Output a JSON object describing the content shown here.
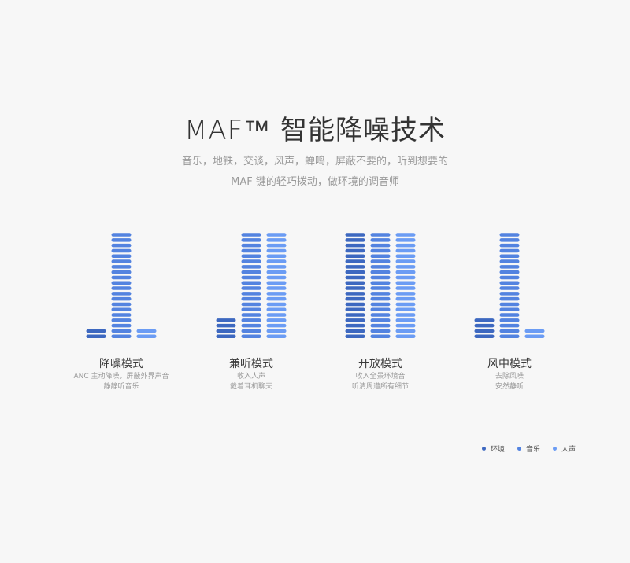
{
  "header": {
    "title": "MAF™ 智能降噪技术",
    "subtitle_line1": "音乐，地铁，交谈，风声，蝉鸣，屏蔽不要的，听到想要的",
    "subtitle_line2": "MAF 键的轻巧拨动，做环境的调音师"
  },
  "modes": [
    {
      "name": "降噪模式",
      "desc1": "ANC 主动降噪，屏蔽外界声音",
      "desc2": "静静听音乐"
    },
    {
      "name": "兼听模式",
      "desc1": "收入人声",
      "desc2": "戴着耳机聊天"
    },
    {
      "name": "开放模式",
      "desc1": "收入全景环境音",
      "desc2": "听清周遭所有细节"
    },
    {
      "name": "风中模式",
      "desc1": "去除风噪",
      "desc2": "安然静听"
    }
  ],
  "legend": [
    {
      "label": "环境",
      "color": "#3d68c0"
    },
    {
      "label": "音乐",
      "color": "#5383e0"
    },
    {
      "label": "人声",
      "color": "#6b9cf4"
    }
  ],
  "chart_data": {
    "type": "bar",
    "categories": [
      "降噪模式",
      "兼听模式",
      "开放模式",
      "风中模式"
    ],
    "series": [
      {
        "name": "环境",
        "values": [
          2,
          4,
          20,
          4
        ]
      },
      {
        "name": "音乐",
        "values": [
          20,
          20,
          20,
          20
        ]
      },
      {
        "name": "人声",
        "values": [
          2,
          20,
          20,
          2
        ]
      }
    ],
    "ylim": [
      0,
      20
    ],
    "colors": [
      "#3d68c0",
      "#5383e0",
      "#6b9cf4"
    ]
  }
}
